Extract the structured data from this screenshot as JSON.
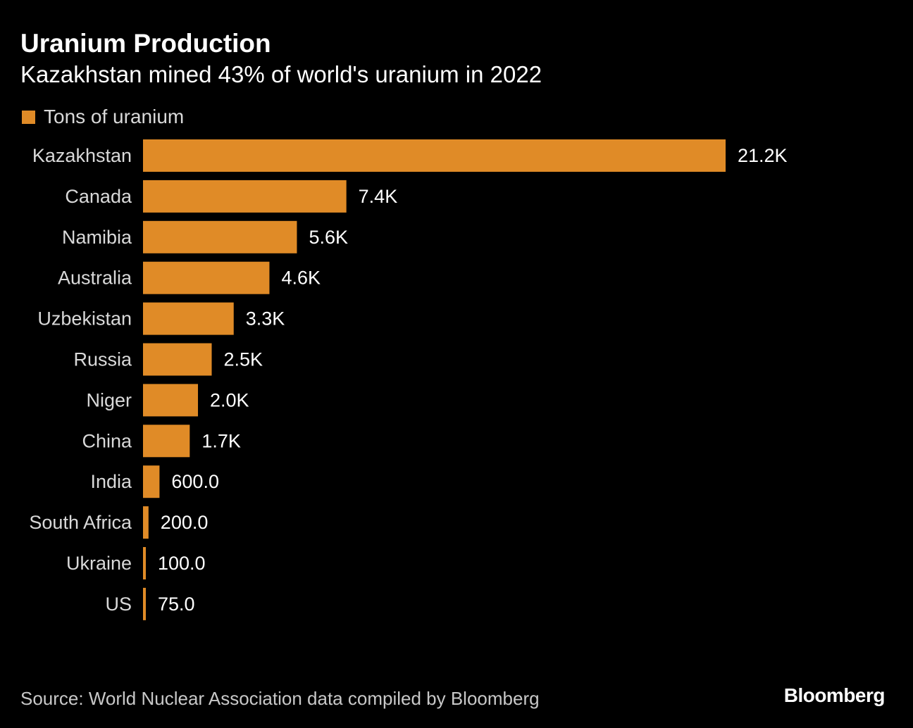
{
  "chart_data": {
    "type": "bar",
    "orientation": "horizontal",
    "title": "Uranium Production",
    "subtitle": "Kazakhstan mined 43% of world's uranium in 2022",
    "categories": [
      "Kazakhstan",
      "Canada",
      "Namibia",
      "Australia",
      "Uzbekistan",
      "Russia",
      "Niger",
      "China",
      "India",
      "South Africa",
      "Ukraine",
      "US"
    ],
    "series": [
      {
        "name": "Tons of uranium",
        "values": [
          21200,
          7400,
          5600,
          4600,
          3300,
          2500,
          2000,
          1700,
          600,
          200,
          100,
          75
        ],
        "labels": [
          "21.2K",
          "7.4K",
          "5.6K",
          "4.6K",
          "3.3K",
          "2.5K",
          "2.0K",
          "1.7K",
          "600.0",
          "200.0",
          "100.0",
          "75.0"
        ],
        "color": "#e08b27"
      }
    ],
    "xlim": [
      0,
      21200
    ],
    "grid": false,
    "legend": "top-left",
    "source": "Source: World Nuclear Association data compiled by Bloomberg",
    "brand": "Bloomberg"
  },
  "colors": {
    "background": "#000000",
    "bar": "#e08b27",
    "text": "#ffffff",
    "muted_text": "#d9d9d9"
  }
}
